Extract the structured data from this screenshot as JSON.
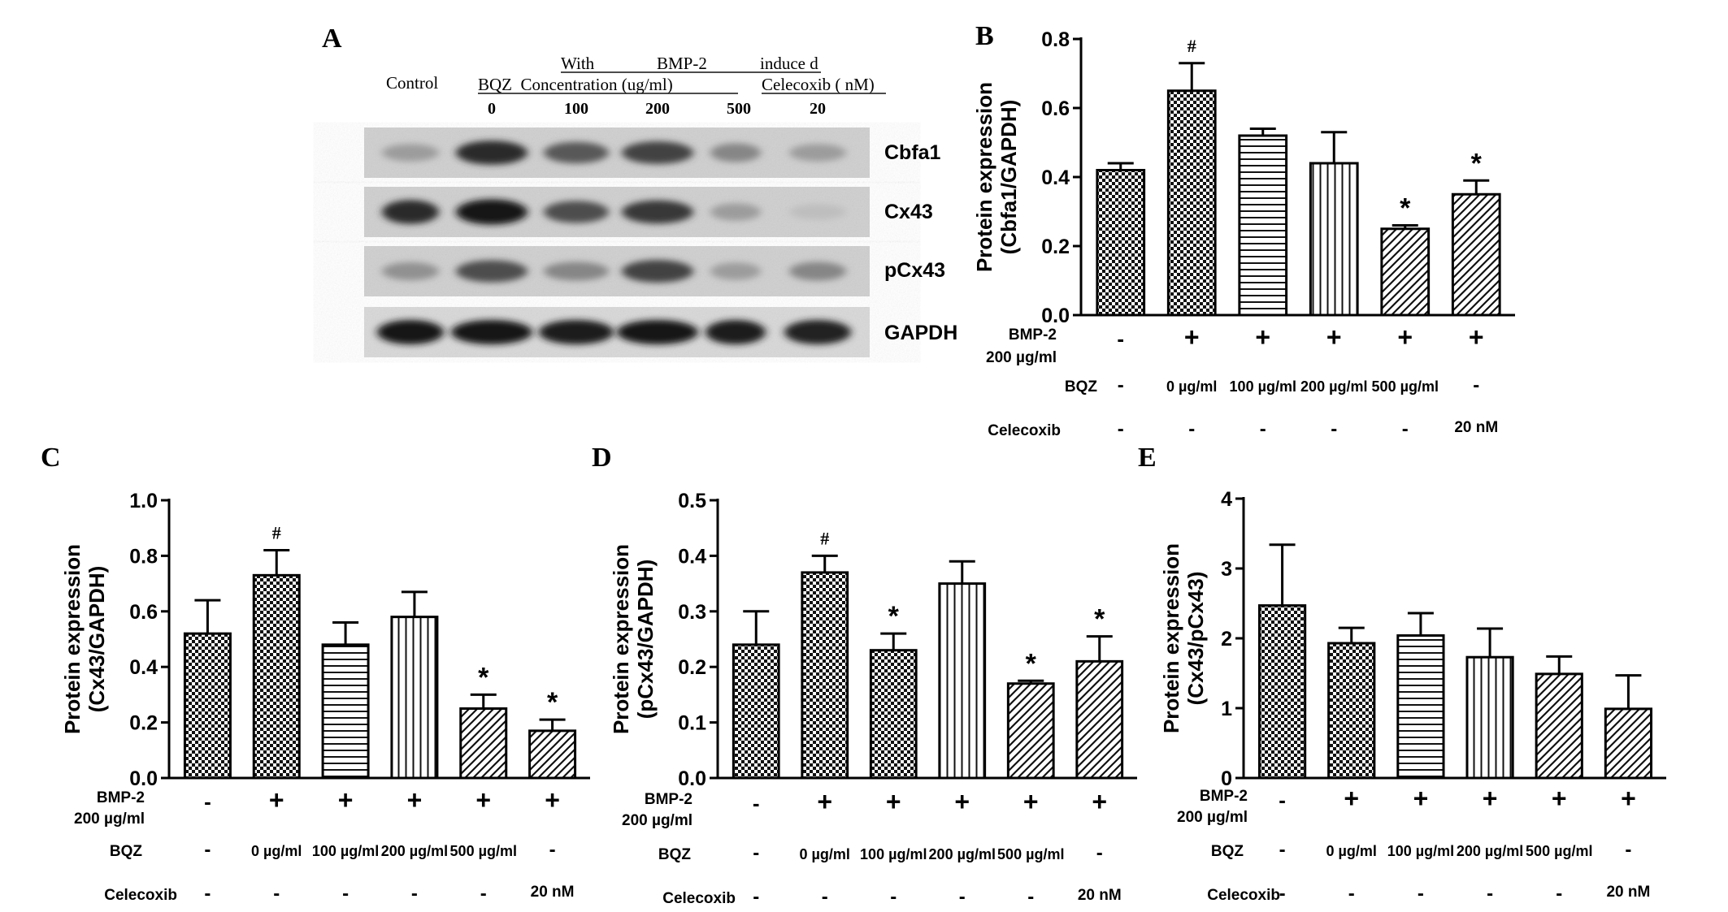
{
  "panel_letters": {
    "A": "A",
    "B": "B",
    "C": "C",
    "D": "D",
    "E": "E"
  },
  "blot": {
    "control_label": "Control",
    "header_line1": [
      "With",
      "BMP-2",
      "induce d"
    ],
    "bqz_label": "BQZ  Concentration (ug/ml)",
    "celecoxib_label": "Celecoxib ( nM)",
    "lane_labels": [
      "0",
      "100",
      "200",
      "500",
      "20"
    ],
    "bands": [
      "Cbfa1",
      "Cx43",
      "pCx43",
      "GAPDH"
    ],
    "band_intensity": [
      [
        0.35,
        0.85,
        0.65,
        0.75,
        0.45,
        0.35
      ],
      [
        0.85,
        0.95,
        0.7,
        0.8,
        0.35,
        0.2
      ],
      [
        0.4,
        0.7,
        0.45,
        0.75,
        0.35,
        0.45
      ],
      [
        0.95,
        0.95,
        0.92,
        0.95,
        0.92,
        0.9
      ]
    ]
  },
  "conditions": {
    "bmp2_label": [
      "BMP-2",
      "200 µg/ml"
    ],
    "bmp2": [
      "-",
      "+",
      "+",
      "+",
      "+",
      "+"
    ],
    "bqz_label": "BQZ",
    "bqz": [
      "-",
      "0 µg/ml",
      "100 µg/ml",
      "200 µg/ml",
      "500 µg/ml",
      "-"
    ],
    "celecoxib_label": "Celecoxib",
    "celecoxib": [
      "-",
      "-",
      "-",
      "-",
      "-",
      "20 nM"
    ]
  },
  "chart_data": [
    {
      "panel": "B",
      "type": "bar",
      "ylabel": [
        "Protein expression",
        "(Cbfa1/GAPDH)"
      ],
      "ylim": [
        0,
        0.8
      ],
      "yticks": [
        "0.0",
        "0.2",
        "0.4",
        "0.6",
        "0.8"
      ],
      "values": [
        0.42,
        0.65,
        0.52,
        0.44,
        0.25,
        0.35
      ],
      "errors": [
        0.02,
        0.08,
        0.02,
        0.09,
        0.01,
        0.04
      ],
      "annotations": [
        "",
        "#",
        "",
        "",
        "*",
        "*"
      ],
      "patterns": [
        "checker",
        "checker",
        "hlines",
        "vlines",
        "diag",
        "diag"
      ]
    },
    {
      "panel": "C",
      "type": "bar",
      "ylabel": [
        "Protein expression",
        "(Cx43/GAPDH)"
      ],
      "ylim": [
        0,
        1.0
      ],
      "yticks": [
        "0.0",
        "0.2",
        "0.4",
        "0.6",
        "0.8",
        "1.0"
      ],
      "values": [
        0.52,
        0.73,
        0.48,
        0.58,
        0.25,
        0.17
      ],
      "errors": [
        0.12,
        0.09,
        0.08,
        0.09,
        0.05,
        0.04
      ],
      "annotations": [
        "",
        "#",
        "",
        "",
        "*",
        "*"
      ],
      "patterns": [
        "checker",
        "checker",
        "hlines",
        "vlines",
        "diag",
        "diag"
      ]
    },
    {
      "panel": "D",
      "type": "bar",
      "ylabel": [
        "Protein expression",
        "(pCx43/GAPDH)"
      ],
      "ylim": [
        0,
        0.5
      ],
      "yticks": [
        "0.0",
        "0.1",
        "0.2",
        "0.3",
        "0.4",
        "0.5"
      ],
      "values": [
        0.24,
        0.37,
        0.23,
        0.35,
        0.17,
        0.21
      ],
      "errors": [
        0.06,
        0.03,
        0.03,
        0.04,
        0.005,
        0.045
      ],
      "annotations": [
        "",
        "#",
        "*",
        "",
        "*",
        "*"
      ],
      "patterns": [
        "checker",
        "checker",
        "checker",
        "vlines",
        "diag",
        "diag"
      ]
    },
    {
      "panel": "E",
      "type": "bar",
      "ylabel": [
        "Protein expression",
        "(Cx43/pCx43)"
      ],
      "ylim": [
        0,
        4
      ],
      "yticks": [
        "0",
        "1",
        "2",
        "3",
        "4"
      ],
      "values": [
        2.47,
        1.93,
        2.04,
        1.73,
        1.49,
        0.99
      ],
      "errors": [
        0.87,
        0.22,
        0.32,
        0.41,
        0.25,
        0.48
      ],
      "annotations": [
        "",
        "",
        "",
        "",
        "",
        ""
      ],
      "patterns": [
        "checker",
        "checker",
        "hlines",
        "vlines",
        "diag",
        "diag"
      ]
    }
  ]
}
